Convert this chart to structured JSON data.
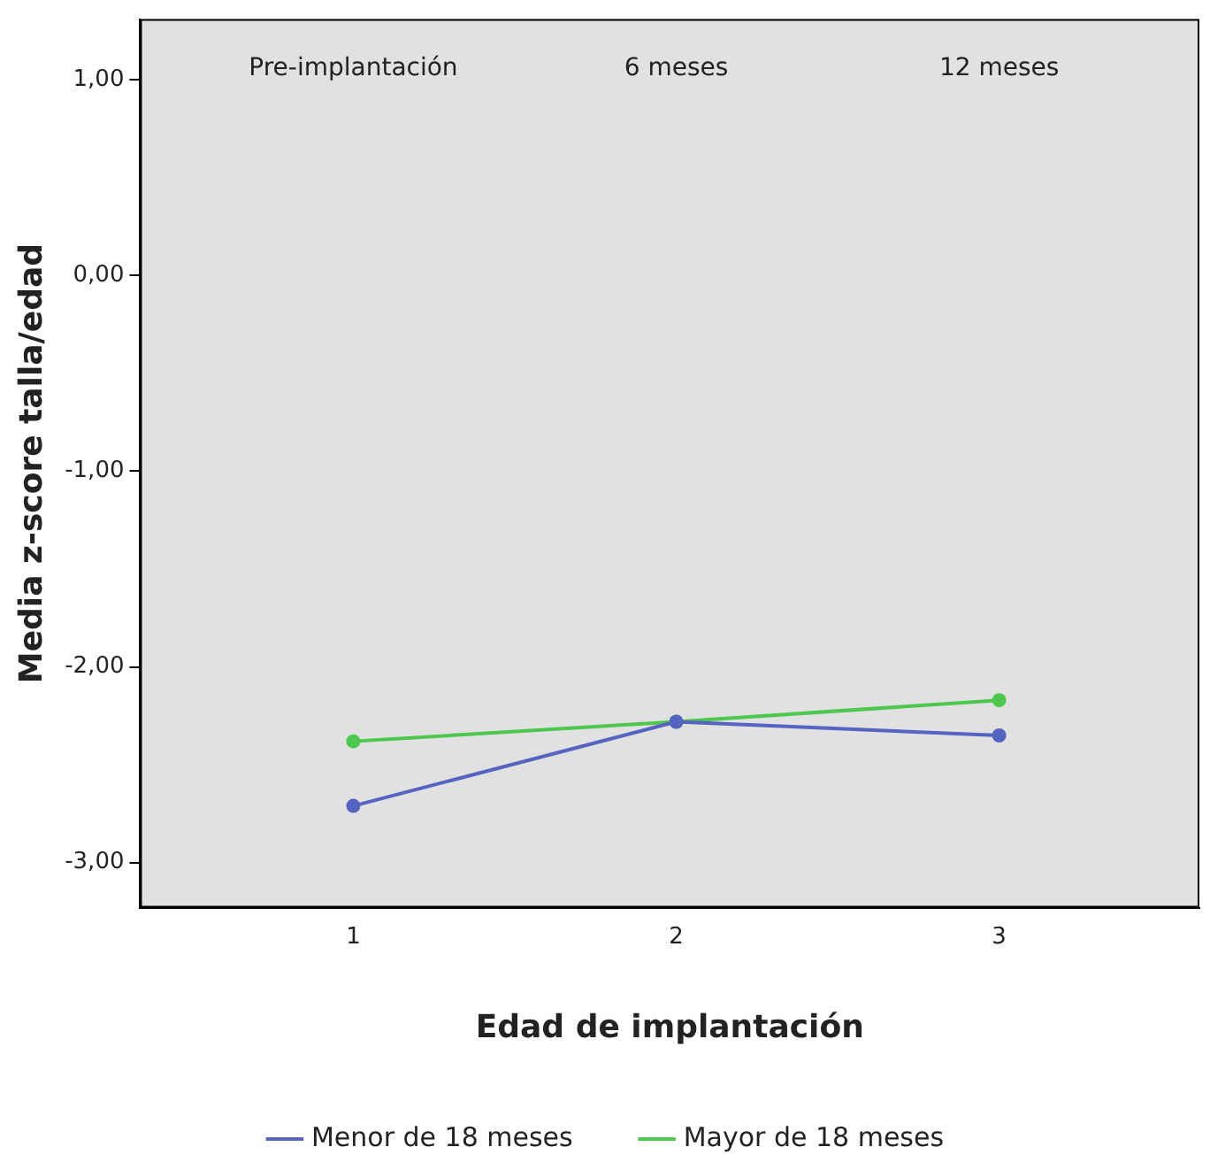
{
  "chart_data": {
    "type": "line",
    "xlabel": "Edad de implantación",
    "ylabel": "Media z-score talla/edad",
    "x": [
      1,
      2,
      3
    ],
    "series": [
      {
        "name": "Menor de 18 meses",
        "color": "#5563c1",
        "values": [
          -2.71,
          -2.28,
          -2.35
        ]
      },
      {
        "name": "Mayor de 18 meses",
        "color": "#4dc74d",
        "values": [
          -2.38,
          -2.28,
          -2.17
        ]
      }
    ],
    "xlim": [
      0.34,
      3.62
    ],
    "ylim": [
      -3.23,
      1.31
    ],
    "xticks": [
      1,
      2,
      3
    ],
    "yticks": [
      {
        "value": 1,
        "label": "1,00"
      },
      {
        "value": 0,
        "label": "0,00"
      },
      {
        "value": -1,
        "label": "-1,00"
      },
      {
        "value": -2,
        "label": "-2,00"
      },
      {
        "value": -3,
        "label": "-3,00"
      }
    ],
    "annotations": [
      "Pre-implantación",
      "6 meses",
      "12 meses"
    ],
    "legend": "bottom",
    "marker": "circle"
  }
}
